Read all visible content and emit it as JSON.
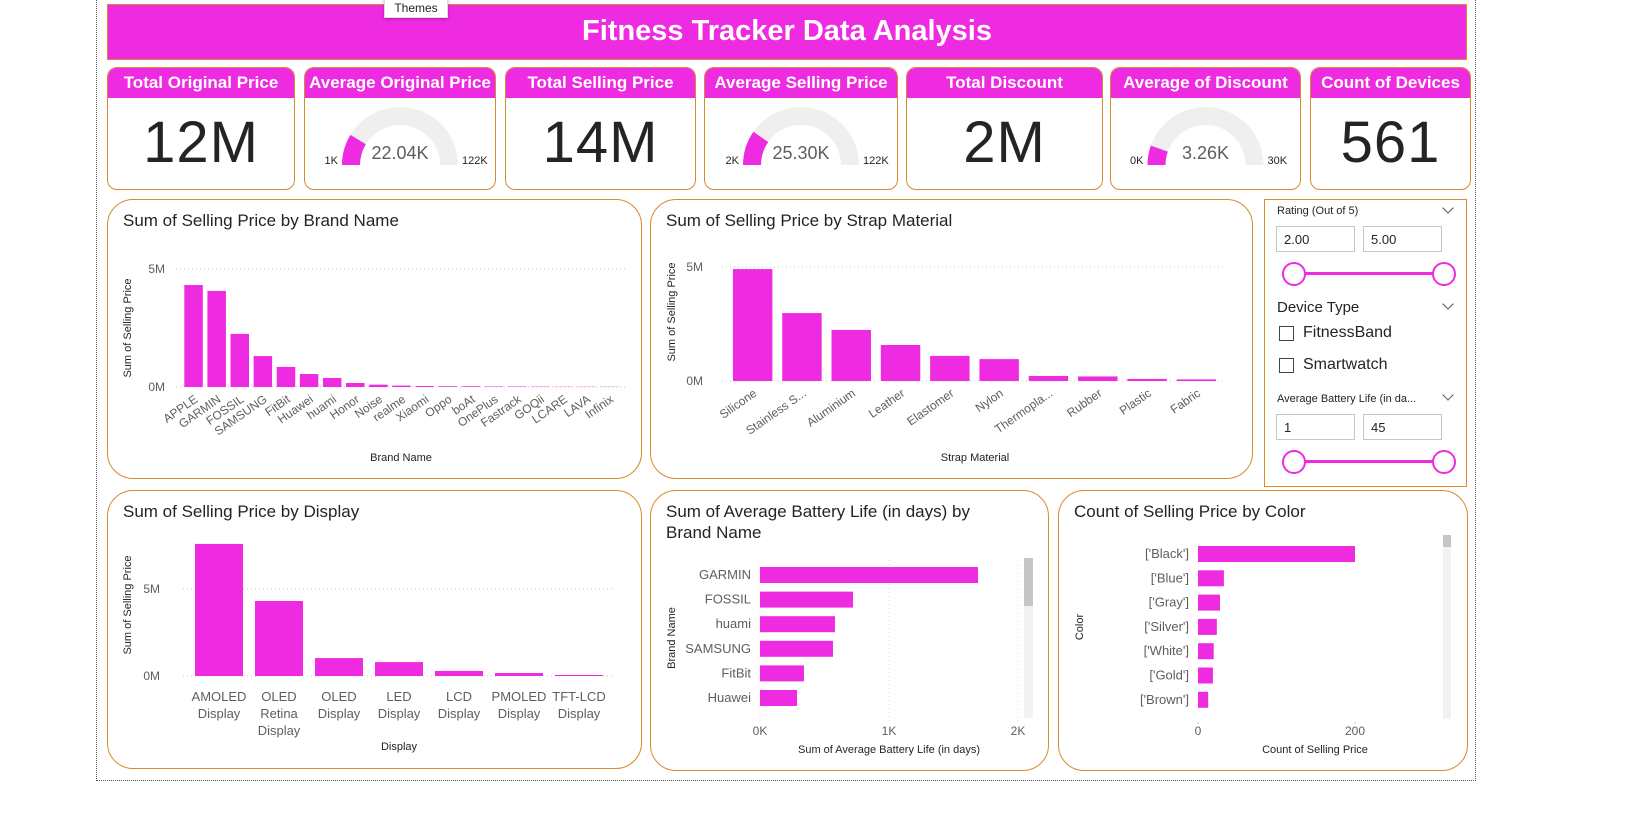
{
  "header": {
    "title": "Fitness Tracker Data Analysis",
    "tooltip": "Themes"
  },
  "kpis": [
    {
      "type": "card",
      "title": "Total Original Price",
      "value": "12M"
    },
    {
      "type": "gauge",
      "title": "Average Original Price",
      "value": 22.04,
      "value_label": "22.04K",
      "min": {
        "value": 1,
        "label": "1K"
      },
      "max": {
        "value": 122,
        "label": "122K"
      }
    },
    {
      "type": "card",
      "title": "Total Selling Price",
      "value": "14M"
    },
    {
      "type": "gauge",
      "title": "Average Selling Price",
      "value": 25.3,
      "value_label": "25.30K",
      "min": {
        "value": 2,
        "label": "2K"
      },
      "max": {
        "value": 122,
        "label": "122K"
      }
    },
    {
      "type": "card",
      "title": "Total Discount",
      "value": "2M"
    },
    {
      "type": "gauge",
      "title": "Average of Discount",
      "value": 3.26,
      "value_label": "3.26K",
      "min": {
        "value": 0,
        "label": "0K"
      },
      "max": {
        "value": 30,
        "label": "30K"
      }
    },
    {
      "type": "card",
      "title": "Count of Devices",
      "value": "561"
    }
  ],
  "slicers": {
    "rating": {
      "title": "Rating (Out of 5)",
      "from": "2.00",
      "to": "5.00"
    },
    "device_type": {
      "title": "Device Type",
      "options": [
        "FitnessBand",
        "Smartwatch"
      ]
    },
    "battery": {
      "title": "Average Battery Life (in da...",
      "from": "1",
      "to": "45"
    }
  },
  "chart_data": [
    {
      "type": "bar",
      "title": "Sum of Selling Price by Brand Name",
      "x_label": "Brand Name",
      "y_label": "Sum of Selling Price",
      "color": "#ee2be0",
      "grid": true,
      "categories": [
        "APPLE",
        "GARMIN",
        "FOSSIL",
        "SAMSUNG",
        "FitBit",
        "Huawei",
        "huami",
        "Honor",
        "Noise",
        "realme",
        "Xiaomi",
        "Oppo",
        "boAt",
        "OnePlus",
        "Fastrack",
        "GOQii",
        "LCARE",
        "LAVA",
        "Infinix"
      ],
      "values": [
        4320000,
        4070000,
        2250000,
        1310000,
        850000,
        550000,
        380000,
        170000,
        100000,
        60000,
        40000,
        30000,
        30000,
        20000,
        20000,
        15000,
        10000,
        10000,
        10000
      ],
      "ylim": [
        0,
        5000000
      ],
      "yticks": [
        {
          "value": 0,
          "label": "0M"
        },
        {
          "value": 5000000,
          "label": "5M"
        }
      ]
    },
    {
      "type": "bar",
      "title": "Sum of Selling Price by Strap Material",
      "x_label": "Strap Material",
      "y_label": "Sum of Selling Price",
      "color": "#ee2be0",
      "grid": true,
      "categories": [
        "Silicone",
        "Stainless S...",
        "Aluminium",
        "Leather",
        "Elastomer",
        "Nylon",
        "Thermopla...",
        "Rubber",
        "Plastic",
        "Fabric"
      ],
      "values": [
        4910000,
        2980000,
        2240000,
        1580000,
        1100000,
        960000,
        220000,
        200000,
        90000,
        70000
      ],
      "ylim": [
        0,
        5000000
      ],
      "yticks": [
        {
          "value": 0,
          "label": "0M"
        },
        {
          "value": 5000000,
          "label": "5M"
        }
      ]
    },
    {
      "type": "bar",
      "title": "Sum of Selling Price by Display",
      "x_label": "Display",
      "y_label": "Sum of Selling Price",
      "color": "#ee2be0",
      "grid": true,
      "categories": [
        "AMOLED Display",
        "OLED Retina Display",
        "OLED Display",
        "LED Display",
        "LCD Display",
        "PMOLED Display",
        "TFT-LCD Display"
      ],
      "values": [
        7590000,
        4310000,
        1030000,
        800000,
        290000,
        170000,
        60000
      ],
      "ylim": [
        0,
        8000000
      ],
      "yticks": [
        {
          "value": 0,
          "label": "0M"
        },
        {
          "value": 5000000,
          "label": "5M"
        }
      ]
    },
    {
      "type": "bar",
      "horizontal": true,
      "title": "Sum of Average Battery Life (in days) by Brand Name",
      "x_label": "Sum of Average Battery Life (in days)",
      "y_label": "Brand Name",
      "color": "#ee2be0",
      "grid": true,
      "categories": [
        "GARMIN",
        "FOSSIL",
        "huami",
        "SAMSUNG",
        "FitBit",
        "Huawei"
      ],
      "values": [
        1690,
        721,
        581,
        566,
        341,
        287
      ],
      "xlim": [
        0,
        2000
      ],
      "xticks": [
        {
          "value": 0,
          "label": "0K"
        },
        {
          "value": 1000,
          "label": "1K"
        },
        {
          "value": 2000,
          "label": "2K"
        }
      ]
    },
    {
      "type": "bar",
      "horizontal": true,
      "title": "Count of Selling Price by Color",
      "x_label": "Count of Selling Price",
      "y_label": "Color",
      "color": "#ee2be0",
      "grid": false,
      "categories": [
        "['Black']",
        "['Blue']",
        "['Gray']",
        "['Silver']",
        "['White']",
        "['Gold']",
        "['Brown']"
      ],
      "values": [
        200,
        33,
        28,
        24,
        20,
        19,
        13
      ],
      "xlim": [
        0,
        300
      ],
      "xticks": [
        0,
        200
      ]
    }
  ]
}
